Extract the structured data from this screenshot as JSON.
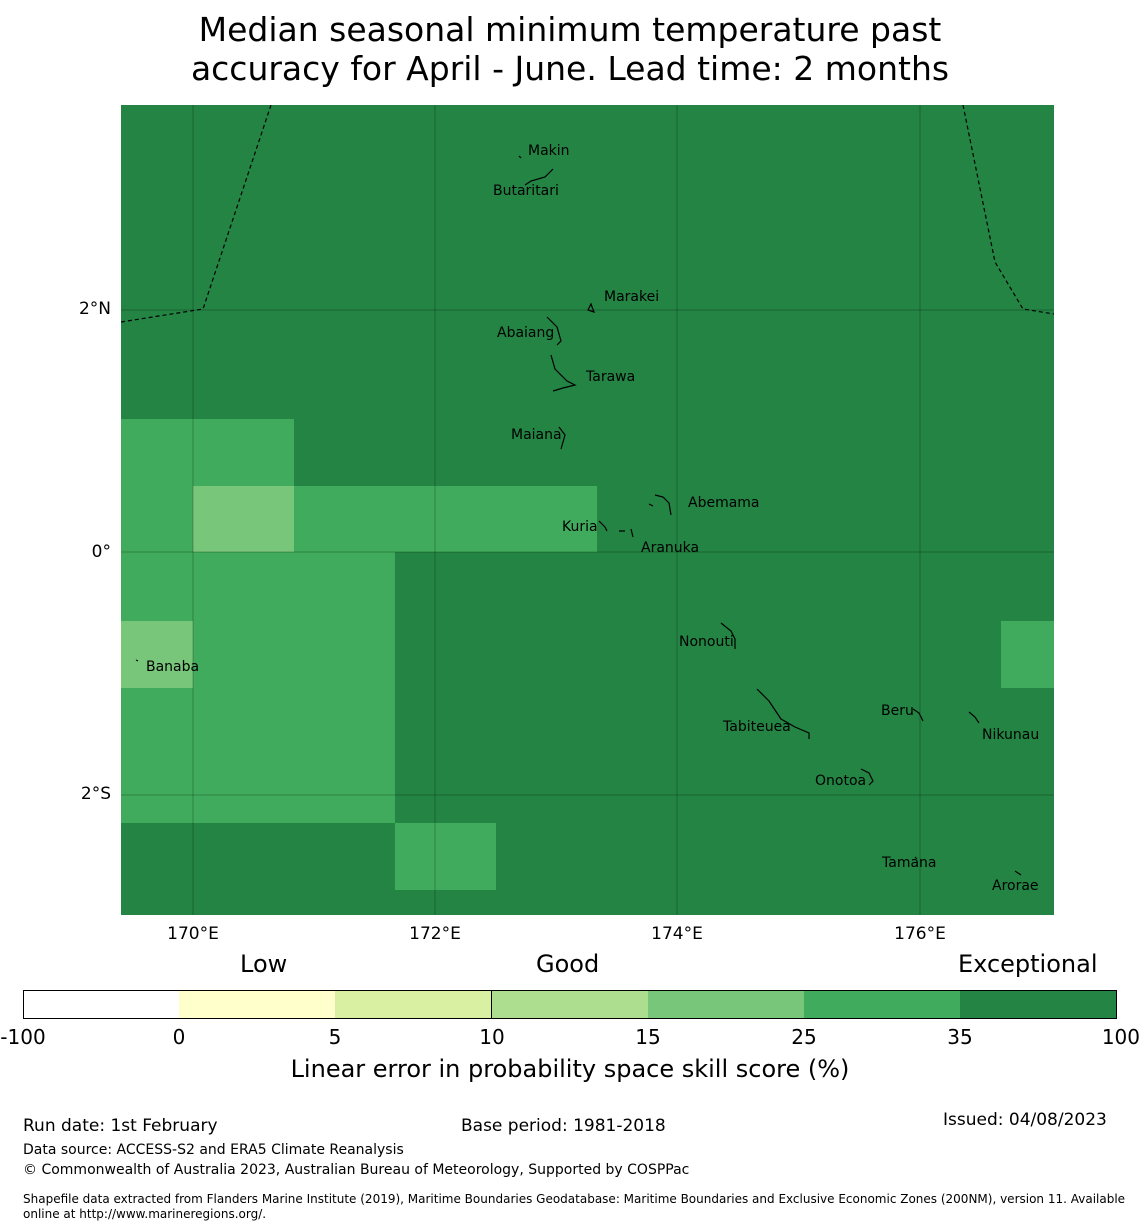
{
  "title_lines": [
    "Median seasonal minimum temperature past",
    "accuracy for April - June. Lead time: 2 months"
  ],
  "map": {
    "background_color": "#238443",
    "y_axis_labels": [
      "2°N",
      "0°",
      "2°S"
    ],
    "x_axis_labels": [
      "170°E",
      "172°E",
      "174°E",
      "176°E"
    ],
    "places": [
      "Makin",
      "Butaritari",
      "Marakei",
      "Abaiang",
      "Tarawa",
      "Maiana",
      "Abemama",
      "Kuria",
      "Aranuka",
      "Nonouti",
      "Banaba",
      "Tabiteuea",
      "Beru",
      "Nikunau",
      "Onotoa",
      "Tamana",
      "Arorae"
    ]
  },
  "legend": {
    "categories": [
      "Low",
      "Good",
      "Exceptional"
    ],
    "colors": [
      "#ffffff",
      "#ffffcc",
      "#d9f0a3",
      "#addd8e",
      "#78c679",
      "#41ab5d",
      "#238443"
    ],
    "ticks": [
      "-100",
      "0",
      "5",
      "10",
      "15",
      "25",
      "35",
      "100"
    ],
    "label": "Linear error in probability space skill score (%)"
  },
  "footer": {
    "run_date": "Run date: 1st February",
    "base_period": "Base period: 1981-2018",
    "issued": "Issued: 04/08/2023",
    "data_source": "Data source: ACCESS-S2 and ERA5 Climate Reanalysis",
    "copyright": "© Commonwealth of Australia 2023, Australian Bureau of Meteorology, Supported by COSPPac",
    "shapefile_1": "Shapefile data extracted from Flanders Marine Institute (2019), Maritime Boundaries Geodatabase: Maritime Boundaries and Exclusive Economic Zones (200NM), version 11. Available",
    "shapefile_2": "online at http://www.marineregions.org/."
  }
}
